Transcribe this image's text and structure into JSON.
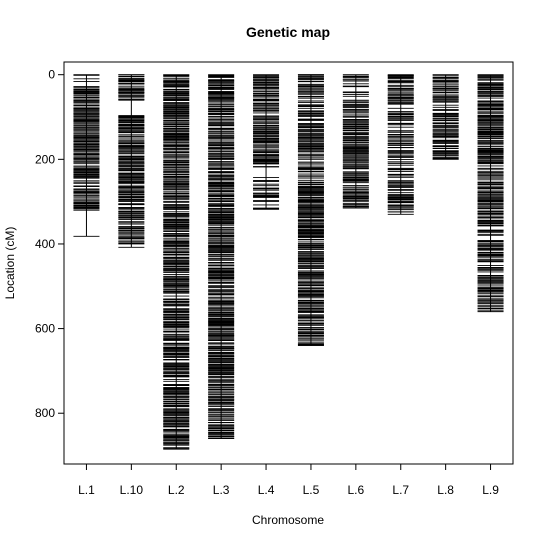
{
  "chart_data": {
    "type": "genetic-map",
    "title": "Genetic map",
    "xlabel": "Chromosome",
    "ylabel": "Location (cM)",
    "ylim": [
      920,
      -30
    ],
    "yticks": [
      0,
      200,
      400,
      600,
      800
    ],
    "grid": false,
    "legend": "none",
    "chromosomes": [
      {
        "name": "L.1",
        "length": 382,
        "dense": [
          [
            30,
            320
          ],
          [
            0,
            30,
            0.4
          ]
        ]
      },
      {
        "name": "L.10",
        "length": 408,
        "dense": [
          [
            0,
            60
          ],
          [
            95,
            400
          ]
        ]
      },
      {
        "name": "L.2",
        "length": 885,
        "dense": [
          [
            0,
            885
          ]
        ]
      },
      {
        "name": "L.3",
        "length": 860,
        "dense": [
          [
            0,
            860
          ]
        ]
      },
      {
        "name": "L.4",
        "length": 318,
        "dense": [
          [
            0,
            220
          ],
          [
            240,
            318,
            0.6
          ]
        ]
      },
      {
        "name": "L.5",
        "length": 640,
        "dense": [
          [
            0,
            640
          ]
        ]
      },
      {
        "name": "L.6",
        "length": 315,
        "dense": [
          [
            60,
            315
          ],
          [
            0,
            60,
            0.4
          ]
        ]
      },
      {
        "name": "L.7",
        "length": 330,
        "dense": [
          [
            0,
            60
          ],
          [
            60,
            280,
            0.6
          ],
          [
            280,
            330
          ]
        ]
      },
      {
        "name": "L.8",
        "length": 200,
        "dense": [
          [
            0,
            200,
            0.7
          ]
        ]
      },
      {
        "name": "L.9",
        "length": 560,
        "dense": [
          [
            0,
            330
          ],
          [
            330,
            560,
            0.7
          ]
        ]
      }
    ]
  }
}
